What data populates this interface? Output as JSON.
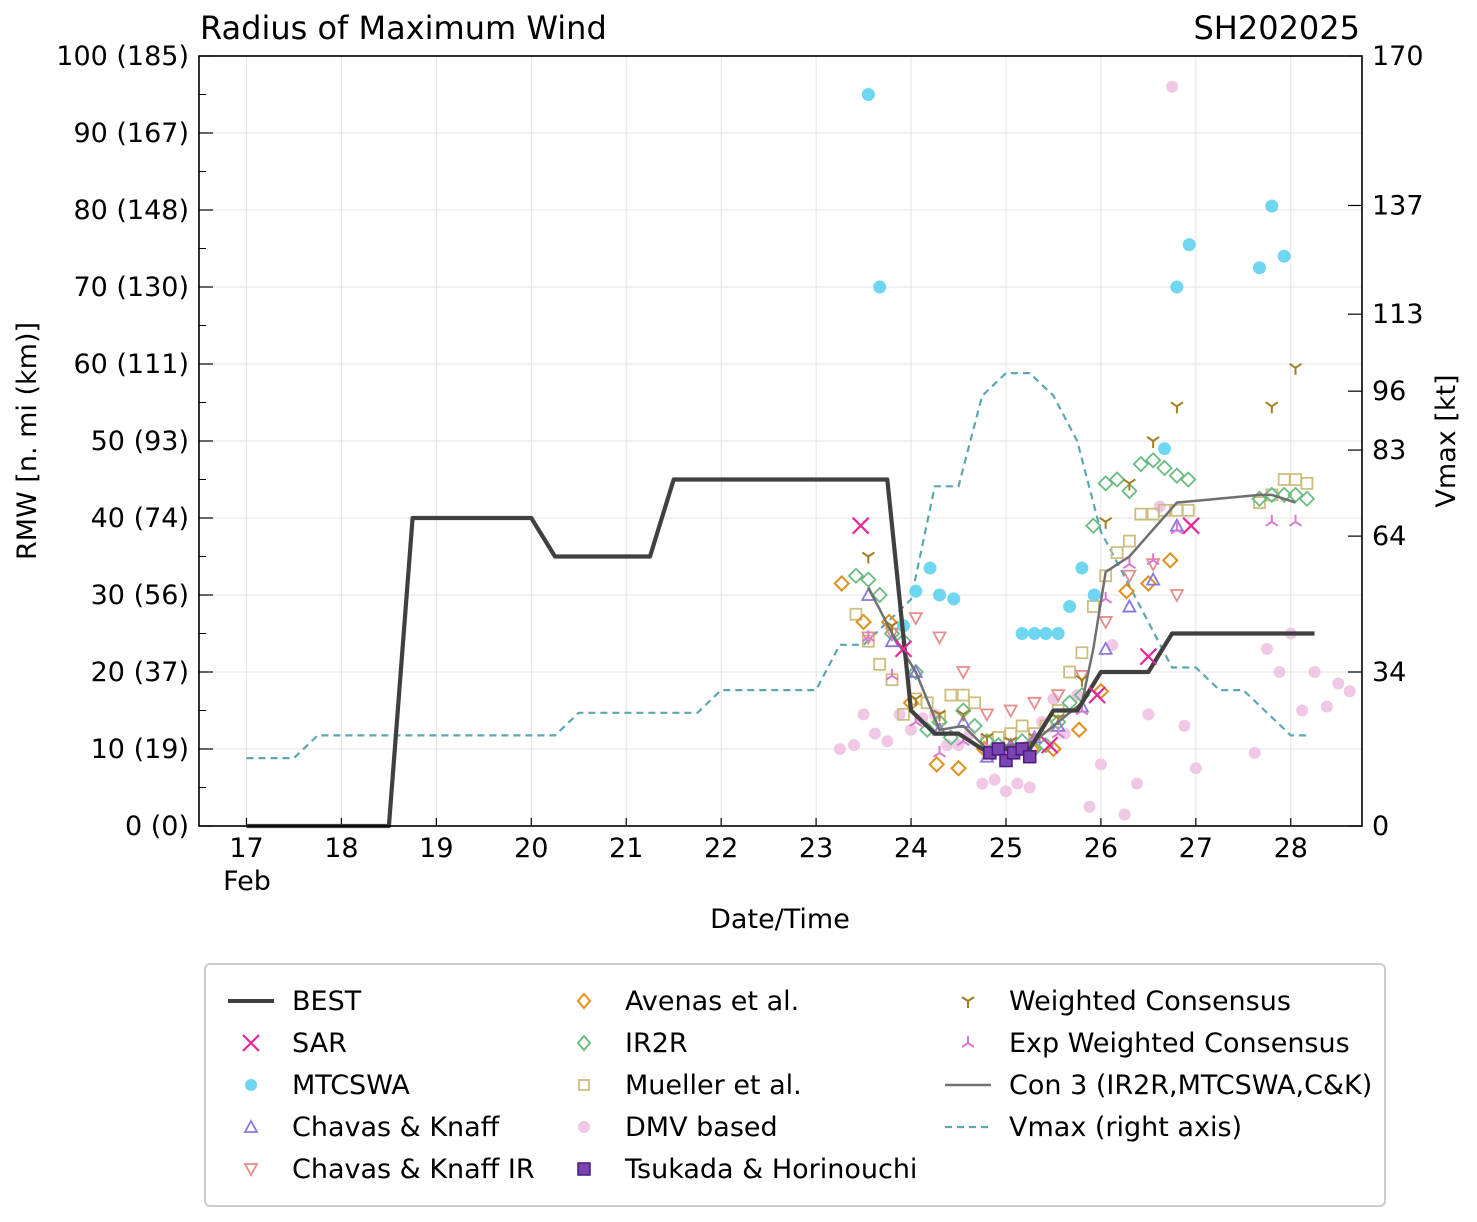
{
  "chart_data": {
    "type": "line",
    "title": "Radius of Maximum Wind",
    "storm_id": "SH202025",
    "xlabel": "Date/Time",
    "ylabel": "RMW [n. mi (km)]",
    "ylabel_right": "Vmax [kt]",
    "xlim": [
      16.5,
      28.75
    ],
    "ylim": [
      0,
      100
    ],
    "x_ticks": [
      "17",
      "18",
      "19",
      "20",
      "21",
      "22",
      "23",
      "24",
      "25",
      "26",
      "27",
      "28"
    ],
    "x_month_label": "Feb",
    "y_ticks": [
      "0 (0)",
      "10 (19)",
      "20 (37)",
      "30 (56)",
      "40 (74)",
      "50 (93)",
      "60 (111)",
      "70 (130)",
      "80 (148)",
      "90 (167)",
      "100 (185)"
    ],
    "right_ticks": [
      "0",
      "34",
      "64",
      "83",
      "96",
      "113",
      "137",
      "170"
    ],
    "right_ylim": [
      0,
      170
    ],
    "colors": {
      "best": "#404040",
      "sar": "#e6279a",
      "mtcswa": "#6fd6f2",
      "ck": "#8778e0",
      "ck_ir": "#e88c8c",
      "avenas": "#e0901e",
      "ir2r": "#6abb80",
      "mueller": "#cdbd7f",
      "dmv": "#f0c8e6",
      "tsukada": "#6a30a0",
      "weighted": "#a08020",
      "exp_weighted": "#d878d0",
      "con3": "#707070",
      "vmax": "#5ba6b0"
    },
    "series": [
      {
        "name": "BEST",
        "points": [
          [
            17,
            0
          ],
          [
            18.5,
            0
          ],
          [
            18.75,
            40
          ],
          [
            20,
            40
          ],
          [
            20.25,
            35
          ],
          [
            21.25,
            35
          ],
          [
            21.5,
            45
          ],
          [
            23.75,
            45
          ],
          [
            24,
            15
          ],
          [
            24.25,
            12
          ],
          [
            24.5,
            12
          ],
          [
            24.75,
            10
          ],
          [
            25,
            10
          ],
          [
            25.25,
            10
          ],
          [
            25.5,
            15
          ],
          [
            25.75,
            15
          ],
          [
            26,
            20
          ],
          [
            26.25,
            20
          ],
          [
            26.5,
            20
          ],
          [
            26.75,
            25
          ],
          [
            27,
            25
          ],
          [
            28.25,
            25
          ]
        ]
      },
      {
        "name": "SAR",
        "points": [
          [
            23.47,
            39
          ],
          [
            23.92,
            23
          ],
          [
            25.46,
            10.5
          ],
          [
            25.96,
            17
          ],
          [
            26.5,
            22
          ],
          [
            26.95,
            39
          ]
        ]
      },
      {
        "name": "MTCSWA",
        "points": [
          [
            23.55,
            95
          ],
          [
            23.67,
            70
          ],
          [
            23.92,
            26
          ],
          [
            24.05,
            30.5
          ],
          [
            24.2,
            33.5
          ],
          [
            24.3,
            30
          ],
          [
            24.45,
            29.5
          ],
          [
            25.17,
            25
          ],
          [
            25.3,
            25
          ],
          [
            25.42,
            25
          ],
          [
            25.55,
            25
          ],
          [
            25.67,
            28.5
          ],
          [
            25.8,
            33.5
          ],
          [
            25.93,
            30
          ],
          [
            26.67,
            49
          ],
          [
            26.8,
            70
          ],
          [
            26.93,
            75.5
          ],
          [
            27.67,
            72.5
          ],
          [
            27.8,
            80.5
          ],
          [
            27.93,
            74
          ]
        ]
      },
      {
        "name": "Chavas & Knaff",
        "points": [
          [
            23.55,
            30
          ],
          [
            23.8,
            24
          ],
          [
            24.05,
            20
          ],
          [
            24.3,
            12.5
          ],
          [
            24.55,
            13.5
          ],
          [
            24.8,
            9
          ],
          [
            25.05,
            10.5
          ],
          [
            25.3,
            11.5
          ],
          [
            25.55,
            13
          ],
          [
            25.8,
            15.5
          ],
          [
            26.05,
            23
          ],
          [
            26.3,
            28.5
          ],
          [
            26.55,
            32
          ],
          [
            26.8,
            39
          ]
        ]
      },
      {
        "name": "Chavas & Knaff IR",
        "points": [
          [
            23.55,
            24.5
          ],
          [
            23.8,
            25
          ],
          [
            24.05,
            27
          ],
          [
            24.3,
            24.5
          ],
          [
            24.55,
            20
          ],
          [
            24.8,
            14.5
          ],
          [
            25.05,
            15
          ],
          [
            25.3,
            16
          ],
          [
            25.55,
            17
          ],
          [
            25.8,
            19.5
          ],
          [
            26.05,
            26.5
          ],
          [
            26.3,
            32.5
          ],
          [
            26.55,
            34
          ],
          [
            26.8,
            30
          ]
        ]
      },
      {
        "name": "Avenas et al.",
        "points": [
          [
            23.27,
            31.5
          ],
          [
            23.5,
            26.5
          ],
          [
            23.77,
            26.5
          ],
          [
            24,
            16
          ],
          [
            24.27,
            8
          ],
          [
            24.5,
            7.5
          ],
          [
            24.77,
            10
          ],
          [
            25,
            9.5
          ],
          [
            25.27,
            10
          ],
          [
            25.5,
            10
          ],
          [
            25.77,
            12.5
          ],
          [
            26,
            17.5
          ],
          [
            26.27,
            30.5
          ],
          [
            26.5,
            31.5
          ],
          [
            26.73,
            34.5
          ]
        ]
      },
      {
        "name": "IR2R",
        "points": [
          [
            23.42,
            32.5
          ],
          [
            23.55,
            32
          ],
          [
            23.67,
            30
          ],
          [
            23.8,
            25
          ],
          [
            23.92,
            24
          ],
          [
            24.05,
            20
          ],
          [
            24.17,
            12.5
          ],
          [
            24.3,
            13.5
          ],
          [
            24.42,
            11.5
          ],
          [
            24.55,
            15
          ],
          [
            24.67,
            13
          ],
          [
            24.8,
            11
          ],
          [
            24.92,
            10.5
          ],
          [
            25.05,
            10
          ],
          [
            25.17,
            11
          ],
          [
            25.3,
            10
          ],
          [
            25.42,
            10.5
          ],
          [
            25.55,
            13.5
          ],
          [
            25.67,
            16
          ],
          [
            25.8,
            17
          ],
          [
            25.92,
            39
          ],
          [
            26.05,
            44.5
          ],
          [
            26.17,
            45
          ],
          [
            26.3,
            43.5
          ],
          [
            26.42,
            47
          ],
          [
            26.55,
            47.5
          ],
          [
            26.67,
            46.5
          ],
          [
            26.8,
            45.5
          ],
          [
            26.92,
            45
          ],
          [
            27.67,
            42.5
          ],
          [
            27.8,
            43
          ],
          [
            27.93,
            43
          ],
          [
            28.05,
            43
          ],
          [
            28.17,
            42.5
          ]
        ]
      },
      {
        "name": "Mueller et al.",
        "points": [
          [
            23.42,
            27.5
          ],
          [
            23.55,
            24
          ],
          [
            23.67,
            21
          ],
          [
            23.8,
            19
          ],
          [
            23.92,
            14.5
          ],
          [
            24.05,
            16.5
          ],
          [
            24.17,
            16
          ],
          [
            24.3,
            14
          ],
          [
            24.42,
            17
          ],
          [
            24.55,
            17
          ],
          [
            24.67,
            16
          ],
          [
            24.8,
            11
          ],
          [
            24.92,
            11.5
          ],
          [
            25.05,
            12
          ],
          [
            25.17,
            13
          ],
          [
            25.3,
            12
          ],
          [
            25.42,
            13
          ],
          [
            25.55,
            15
          ],
          [
            25.67,
            20
          ],
          [
            25.8,
            22.5
          ],
          [
            25.92,
            28.5
          ],
          [
            26.05,
            32.5
          ],
          [
            26.17,
            35.5
          ],
          [
            26.3,
            37
          ],
          [
            26.42,
            40.5
          ],
          [
            26.55,
            40.5
          ],
          [
            26.67,
            41
          ],
          [
            26.8,
            41
          ],
          [
            26.92,
            41
          ],
          [
            27.67,
            42
          ],
          [
            27.8,
            43
          ],
          [
            27.93,
            45
          ],
          [
            28.05,
            45
          ],
          [
            28.17,
            44.5
          ]
        ]
      },
      {
        "name": "DMV based",
        "points": [
          [
            23.25,
            10
          ],
          [
            23.4,
            10.5
          ],
          [
            23.5,
            14.5
          ],
          [
            23.62,
            12
          ],
          [
            23.75,
            11
          ],
          [
            23.88,
            14.5
          ],
          [
            24,
            12.5
          ],
          [
            24.12,
            14
          ],
          [
            24.25,
            14.5
          ],
          [
            24.38,
            10.5
          ],
          [
            24.5,
            10.5
          ],
          [
            24.62,
            12
          ],
          [
            24.75,
            5.5
          ],
          [
            24.88,
            6
          ],
          [
            25,
            4.5
          ],
          [
            25.12,
            5.5
          ],
          [
            25.25,
            5
          ],
          [
            25.38,
            13.5
          ],
          [
            25.5,
            16.5
          ],
          [
            25.62,
            12
          ],
          [
            25.75,
            17
          ],
          [
            25.88,
            2.5
          ],
          [
            26,
            8
          ],
          [
            26.12,
            23.5
          ],
          [
            26.25,
            1.5
          ],
          [
            26.38,
            5.5
          ],
          [
            26.5,
            14.5
          ],
          [
            26.62,
            41.5
          ],
          [
            26.75,
            96
          ],
          [
            26.88,
            13
          ],
          [
            27,
            7.5
          ],
          [
            27.62,
            9.5
          ],
          [
            27.75,
            23
          ],
          [
            27.88,
            20
          ],
          [
            28,
            25
          ],
          [
            28.12,
            15
          ],
          [
            28.25,
            20
          ],
          [
            28.38,
            15.5
          ],
          [
            28.5,
            18.5
          ],
          [
            28.62,
            17.5
          ]
        ]
      },
      {
        "name": "Tsukada & Horinouchi",
        "points": [
          [
            24.83,
            9.5
          ],
          [
            24.92,
            10
          ],
          [
            25,
            8.5
          ],
          [
            25.08,
            9.5
          ],
          [
            25.17,
            10
          ],
          [
            25.25,
            9
          ]
        ]
      },
      {
        "name": "Weighted Consensus",
        "points": [
          [
            23.55,
            35
          ],
          [
            23.8,
            26
          ],
          [
            24.05,
            16.5
          ],
          [
            24.3,
            14.5
          ],
          [
            24.55,
            14.5
          ],
          [
            24.8,
            11.5
          ],
          [
            25.05,
            11
          ],
          [
            25.3,
            11.5
          ],
          [
            25.55,
            14
          ],
          [
            25.8,
            19
          ],
          [
            26.05,
            39.5
          ],
          [
            26.3,
            44.5
          ],
          [
            26.55,
            50
          ],
          [
            26.8,
            54.5
          ],
          [
            28.05,
            59.5
          ],
          [
            27.8,
            54.5
          ]
        ]
      },
      {
        "name": "Exp Weighted Consensus",
        "points": [
          [
            23.55,
            24.5
          ],
          [
            23.8,
            19.5
          ],
          [
            24.05,
            13.5
          ],
          [
            24.3,
            9.5
          ],
          [
            24.55,
            11
          ],
          [
            24.8,
            10
          ],
          [
            25.05,
            10
          ],
          [
            25.3,
            11.5
          ],
          [
            25.55,
            12
          ],
          [
            25.8,
            15
          ],
          [
            26.05,
            29.5
          ],
          [
            26.3,
            34
          ],
          [
            26.55,
            34.5
          ],
          [
            26.8,
            38.5
          ],
          [
            27.8,
            39.5
          ],
          [
            28.05,
            39.5
          ]
        ]
      },
      {
        "name": "Con 3 (IR2R,MTCSWA,C&K)",
        "points": [
          [
            23.55,
            31
          ],
          [
            23.8,
            25
          ],
          [
            24.05,
            20
          ],
          [
            24.3,
            12.5
          ],
          [
            24.55,
            13
          ],
          [
            24.8,
            10
          ],
          [
            25.05,
            10.5
          ],
          [
            25.3,
            11
          ],
          [
            25.55,
            13.5
          ],
          [
            25.8,
            16
          ],
          [
            25.92,
            23
          ],
          [
            26.05,
            33
          ],
          [
            26.3,
            35
          ],
          [
            26.55,
            38.5
          ],
          [
            26.8,
            42
          ],
          [
            27.67,
            43
          ],
          [
            27.8,
            43
          ],
          [
            27.93,
            42.5
          ],
          [
            28.05,
            42
          ]
        ]
      },
      {
        "name": "Vmax (right axis)",
        "points": [
          [
            17,
            15
          ],
          [
            17.5,
            15
          ],
          [
            17.75,
            20
          ],
          [
            20.25,
            20
          ],
          [
            20.5,
            25
          ],
          [
            21.75,
            25
          ],
          [
            22,
            30
          ],
          [
            23,
            30
          ],
          [
            23.25,
            40
          ],
          [
            23.5,
            40
          ],
          [
            23.75,
            45
          ],
          [
            24,
            50
          ],
          [
            24.25,
            75
          ],
          [
            24.5,
            75
          ],
          [
            24.75,
            95
          ],
          [
            25,
            100
          ],
          [
            25.25,
            100
          ],
          [
            25.5,
            95
          ],
          [
            25.75,
            85
          ],
          [
            26,
            65
          ],
          [
            26.25,
            55
          ],
          [
            26.5,
            45
          ],
          [
            26.75,
            35
          ],
          [
            27,
            35
          ],
          [
            27.25,
            30
          ],
          [
            27.5,
            30
          ],
          [
            27.75,
            25
          ],
          [
            28,
            20
          ],
          [
            28.2,
            20
          ]
        ]
      }
    ]
  },
  "legend": {
    "items": [
      {
        "label": "BEST"
      },
      {
        "label": "SAR"
      },
      {
        "label": "MTCSWA"
      },
      {
        "label": "Chavas & Knaff"
      },
      {
        "label": "Chavas & Knaff IR"
      },
      {
        "label": "Avenas et al."
      },
      {
        "label": "IR2R"
      },
      {
        "label": "Mueller et al."
      },
      {
        "label": "DMV based"
      },
      {
        "label": "Tsukada & Horinouchi"
      },
      {
        "label": "Weighted Consensus"
      },
      {
        "label": "Exp Weighted Consensus"
      },
      {
        "label": "Con 3 (IR2R,MTCSWA,C&K)"
      },
      {
        "label": "Vmax (right axis)"
      }
    ]
  }
}
